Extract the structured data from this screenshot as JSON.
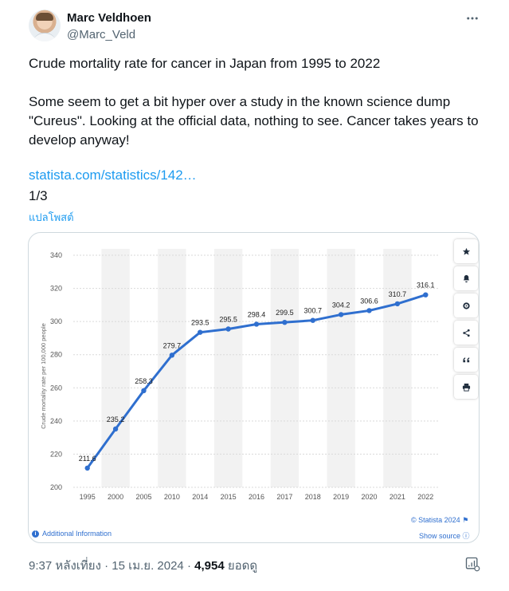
{
  "author": {
    "display_name": "Marc Veldhoen",
    "handle": "@Marc_Veld"
  },
  "tweet": {
    "text_line1": "Crude mortality rate for cancer in Japan from 1995 to 2022",
    "text_para2": "Some seem to get a bit hyper over a study in the known science dump \"Cureus\". Looking at the official data, nothing to see. Cancer takes years to develop anyway!",
    "link": "statista.com/statistics/142…",
    "page_count": "1/3",
    "translate_label": "แปลโพสต์"
  },
  "media": {
    "statista_credit": "© Statista 2024",
    "show_source": "Show source",
    "additional_info": "Additional Information",
    "tools": [
      "star-icon",
      "bell-icon",
      "gear-icon",
      "share-icon",
      "quote-icon",
      "print-icon"
    ]
  },
  "meta": {
    "time": "9:37 หลังเที่ยง",
    "sep1": " · ",
    "date": "15 เม.ย. 2024",
    "sep2": " · ",
    "views": "4,954",
    "views_label": " ยอดดู"
  },
  "colors": {
    "line": "#2f6fcf",
    "link": "#1d9bf0",
    "band": "#f2f2f2"
  },
  "chart_data": {
    "type": "line",
    "ylabel": "Crude mortality rate per 100,000 people",
    "xlabel": "",
    "categories": [
      "1995",
      "2000",
      "2005",
      "2010",
      "2014",
      "2015",
      "2016",
      "2017",
      "2018",
      "2019",
      "2020",
      "2021",
      "2022"
    ],
    "values": [
      211.6,
      235.2,
      258.3,
      279.7,
      293.5,
      295.5,
      298.4,
      299.5,
      300.7,
      304.2,
      306.6,
      310.7,
      316.1
    ],
    "value_labels": [
      "211.6",
      "235.2",
      "258.3",
      "279.7",
      "293.5",
      "295.5",
      "298.4",
      "299.5",
      "300.7",
      "304.2",
      "306.6",
      "310.7",
      "316.1"
    ],
    "yticks": [
      "200",
      "220",
      "240",
      "260",
      "280",
      "300",
      "320",
      "340"
    ],
    "ylim": [
      200,
      340
    ],
    "grid": true,
    "legend": "none"
  }
}
